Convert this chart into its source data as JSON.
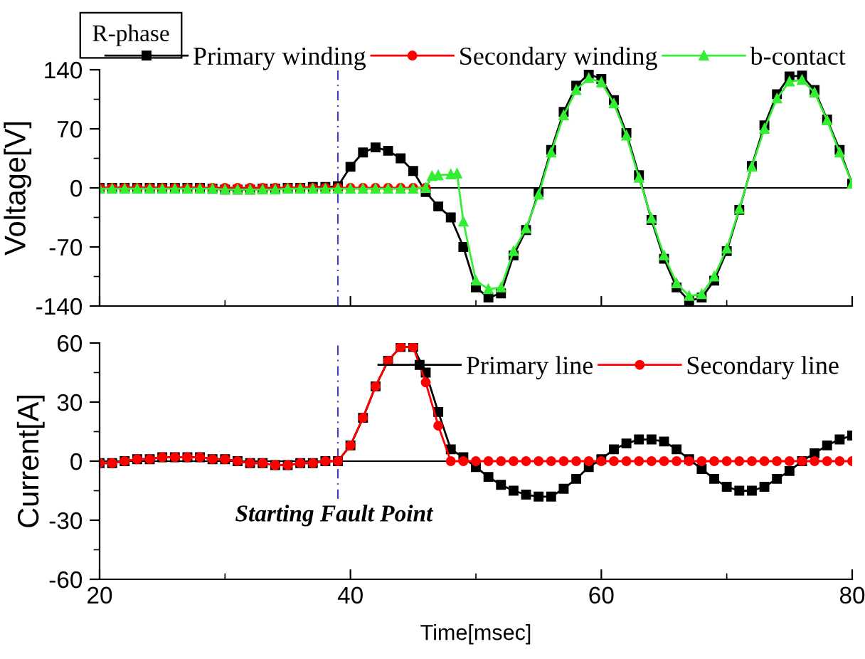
{
  "chart_data": [
    {
      "type": "line",
      "title": "R-phase",
      "ylabel": "Voltage[V]",
      "xlim": [
        20,
        80
      ],
      "xticks": [
        20,
        40,
        60,
        80
      ],
      "ylim": [
        -140,
        140
      ],
      "yticks": [
        -140,
        -70,
        0,
        70,
        140
      ],
      "tick_labels": "y",
      "grid": false,
      "legend": "top right",
      "ref_lines": [
        {
          "axis": "y",
          "value": 0,
          "color": "#000000",
          "line_style": "solid"
        },
        {
          "axis": "x",
          "value": 39,
          "color": "#4444bb",
          "line_style": "dashed"
        }
      ],
      "series": [
        {
          "name": "Primary winding",
          "color": "#000000",
          "marker": "square",
          "x": [
            20,
            21,
            22,
            23,
            24,
            25,
            26,
            27,
            28,
            29,
            30,
            31,
            32,
            33,
            34,
            35,
            36,
            37,
            38,
            39,
            40,
            41,
            42,
            43,
            44,
            45,
            46,
            47,
            48,
            49,
            50,
            51,
            52,
            53,
            54,
            55,
            56,
            57,
            58,
            59,
            60,
            61,
            62,
            63,
            64,
            65,
            66,
            67,
            68,
            69,
            70,
            71,
            72,
            73,
            74,
            75,
            76,
            77,
            78,
            79,
            80
          ],
          "values": [
            0,
            0,
            0,
            0,
            0,
            0,
            0,
            0,
            0,
            -1,
            -2,
            -2,
            -2,
            -1,
            -1,
            0,
            0,
            1,
            1,
            2,
            25,
            42,
            48,
            44,
            35,
            20,
            -5,
            -22,
            -35,
            -70,
            -118,
            -130,
            -125,
            -80,
            -50,
            -5,
            45,
            90,
            121,
            135,
            129,
            104,
            65,
            15,
            -38,
            -84,
            -118,
            -134,
            -130,
            -110,
            -75,
            -26,
            26,
            74,
            111,
            132,
            133,
            116,
            81,
            45,
            5
          ]
        },
        {
          "name": "Secondary winding",
          "color": "#ff0000",
          "marker": "circle",
          "x": [
            20,
            21,
            22,
            23,
            24,
            25,
            26,
            27,
            28,
            29,
            30,
            31,
            32,
            33,
            34,
            35,
            36,
            37,
            38,
            39,
            40,
            41,
            42,
            43,
            44,
            45,
            46
          ],
          "values": [
            0,
            0,
            0,
            0,
            0,
            0,
            0,
            0,
            0,
            0,
            0,
            0,
            0,
            0,
            0,
            0,
            0,
            0,
            0,
            0,
            0,
            0,
            0,
            0,
            0,
            0,
            0
          ]
        },
        {
          "name": "b-contact",
          "color": "#33ee33",
          "marker": "triangle",
          "x": [
            20,
            21,
            22,
            23,
            24,
            25,
            26,
            27,
            28,
            29,
            30,
            31,
            32,
            33,
            34,
            35,
            36,
            37,
            38,
            39,
            40,
            41,
            42,
            43,
            44,
            45,
            46,
            46.5,
            47,
            48,
            48.5,
            49,
            50,
            51,
            52,
            53,
            54,
            55,
            56,
            57,
            58,
            59,
            60,
            61,
            62,
            63,
            64,
            65,
            66,
            67,
            68,
            69,
            70,
            71,
            72,
            73,
            74,
            75,
            76,
            77,
            78,
            79,
            80
          ],
          "values": [
            -1,
            -1,
            -1,
            -1,
            -1,
            -1,
            -1,
            -1,
            -1,
            -1,
            -2,
            -2,
            -2,
            -2,
            -2,
            -1,
            -1,
            -1,
            -1,
            -1,
            -1,
            -1,
            -1,
            -1,
            -1,
            -1,
            0,
            14,
            15,
            16,
            17,
            -40,
            -110,
            -120,
            -118,
            -75,
            -48,
            -8,
            42,
            86,
            116,
            130,
            125,
            100,
            62,
            12,
            -36,
            -80,
            -113,
            -128,
            -126,
            -105,
            -72,
            -25,
            25,
            70,
            106,
            126,
            128,
            113,
            80,
            42,
            5
          ]
        }
      ]
    },
    {
      "type": "line",
      "xlabel": "Time[msec]",
      "ylabel": "Current[A]",
      "xlim": [
        20,
        80
      ],
      "xticks": [
        20,
        40,
        60,
        80
      ],
      "ylim": [
        -60,
        60
      ],
      "yticks": [
        -60,
        -30,
        0,
        30,
        60
      ],
      "grid": false,
      "legend": "top right",
      "annotations": [
        "Starting Fault Point"
      ],
      "ref_lines": [
        {
          "axis": "y",
          "value": 0,
          "color": "#000000",
          "line_style": "solid"
        },
        {
          "axis": "x",
          "value": 39,
          "color": "#4444bb",
          "line_style": "dashed"
        }
      ],
      "series": [
        {
          "name": "Primary line",
          "color": "#000000",
          "marker": "square",
          "x": [
            20,
            21,
            22,
            23,
            24,
            25,
            26,
            27,
            28,
            29,
            30,
            31,
            32,
            33,
            34,
            35,
            36,
            37,
            38,
            39,
            40,
            41,
            42,
            43,
            44,
            45,
            46,
            47,
            48,
            49,
            50,
            51,
            52,
            53,
            54,
            55,
            56,
            57,
            58,
            59,
            60,
            61,
            62,
            63,
            64,
            65,
            66,
            67,
            68,
            69,
            70,
            71,
            72,
            73,
            74,
            75,
            76,
            77,
            78,
            79,
            80
          ],
          "values": [
            -1,
            -1,
            0,
            1,
            1,
            2,
            2,
            2,
            2,
            1,
            1,
            0,
            -1,
            -1,
            -2,
            -2,
            -1,
            -1,
            0,
            0,
            8,
            22,
            38,
            51,
            58,
            58,
            45,
            25,
            6,
            2,
            -3,
            -8,
            -12,
            -15,
            -17,
            -18,
            -18,
            -14,
            -9,
            -3,
            1,
            6,
            9,
            11,
            11,
            10,
            6,
            1,
            -4,
            -9,
            -13,
            -15,
            -15,
            -13,
            -9,
            -5,
            0,
            4,
            8,
            11,
            13
          ]
        },
        {
          "name": "Secondary line",
          "color": "#ff0000",
          "marker": "circle",
          "x": [
            20,
            21,
            22,
            23,
            24,
            25,
            26,
            27,
            28,
            29,
            30,
            31,
            32,
            33,
            34,
            35,
            36,
            37,
            38,
            39,
            40,
            41,
            42,
            43,
            44,
            45,
            46,
            47,
            48,
            49,
            50,
            51,
            52,
            53,
            54,
            55,
            56,
            57,
            58,
            59,
            60,
            61,
            62,
            63,
            64,
            65,
            66,
            67,
            68,
            69,
            70,
            71,
            72,
            73,
            74,
            75,
            76,
            77,
            78,
            79,
            80
          ],
          "values": [
            -1,
            -1,
            0,
            1,
            1,
            2,
            2,
            2,
            2,
            1,
            1,
            0,
            -1,
            -1,
            -2,
            -2,
            -1,
            -1,
            0,
            0,
            8,
            22,
            38,
            51,
            58,
            58,
            40,
            18,
            0,
            0,
            0,
            0,
            0,
            0,
            0,
            0,
            0,
            0,
            0,
            0,
            0,
            0,
            0,
            0,
            0,
            0,
            0,
            0,
            0,
            0,
            0,
            0,
            0,
            0,
            0,
            0,
            0,
            0,
            0,
            0,
            0
          ]
        }
      ]
    }
  ]
}
